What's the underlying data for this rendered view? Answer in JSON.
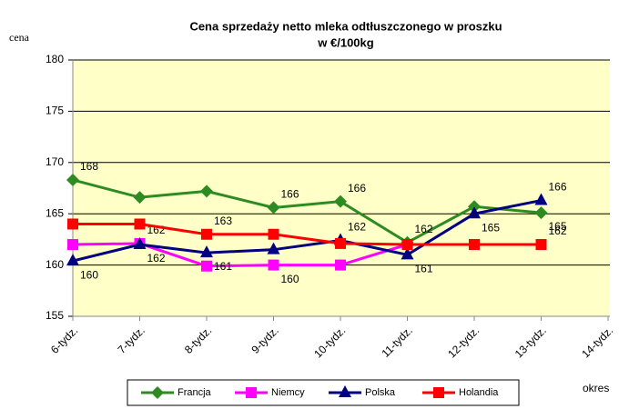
{
  "chart_data": {
    "type": "line",
    "title": "Cena sprzedaży netto mleka odtłuszczonego w proszku",
    "subtitle": "w €/100kg",
    "y_label": "cena",
    "x_label": "okres",
    "categories": [
      "6-tydz.",
      "7-tydz.",
      "8-tydz.",
      "9-tydz.",
      "10-tydz.",
      "11-tydz.",
      "12-tydz.",
      "13-tydz.",
      "14-tydz."
    ],
    "series": [
      {
        "name": "Francja",
        "color": "#2e8b22",
        "marker": "diamond",
        "values": [
          168.3,
          166.6,
          167.2,
          165.6,
          166.2,
          162.2,
          165.7,
          165.1,
          null
        ],
        "value_labels": [
          "168",
          null,
          null,
          "166",
          "166",
          "162",
          null,
          "165",
          null
        ]
      },
      {
        "name": "Niemcy",
        "color": "#ff00ff",
        "marker": "square",
        "values": [
          162,
          162.1,
          159.9,
          160,
          160,
          162,
          162,
          162,
          null
        ],
        "value_labels": [
          null,
          "162",
          null,
          "160",
          null,
          null,
          null,
          "162",
          null
        ]
      },
      {
        "name": "Polska",
        "color": "#000080",
        "marker": "triangle",
        "values": [
          160.4,
          162,
          161.2,
          161.5,
          162.4,
          161,
          165,
          166.3,
          null
        ],
        "value_labels": [
          "160",
          "162",
          "161",
          null,
          "162",
          "161",
          "165",
          "166",
          null
        ]
      },
      {
        "name": "Holandia",
        "color": "#ff0000",
        "marker": "square",
        "values": [
          164,
          164,
          163,
          163,
          162.1,
          162,
          162,
          162,
          null
        ],
        "value_labels": [
          null,
          null,
          "163",
          null,
          null,
          null,
          null,
          null,
          null
        ]
      }
    ],
    "ylim": [
      155,
      180
    ],
    "yticks": [
      155,
      160,
      165,
      170,
      175,
      180
    ],
    "grid": true
  }
}
